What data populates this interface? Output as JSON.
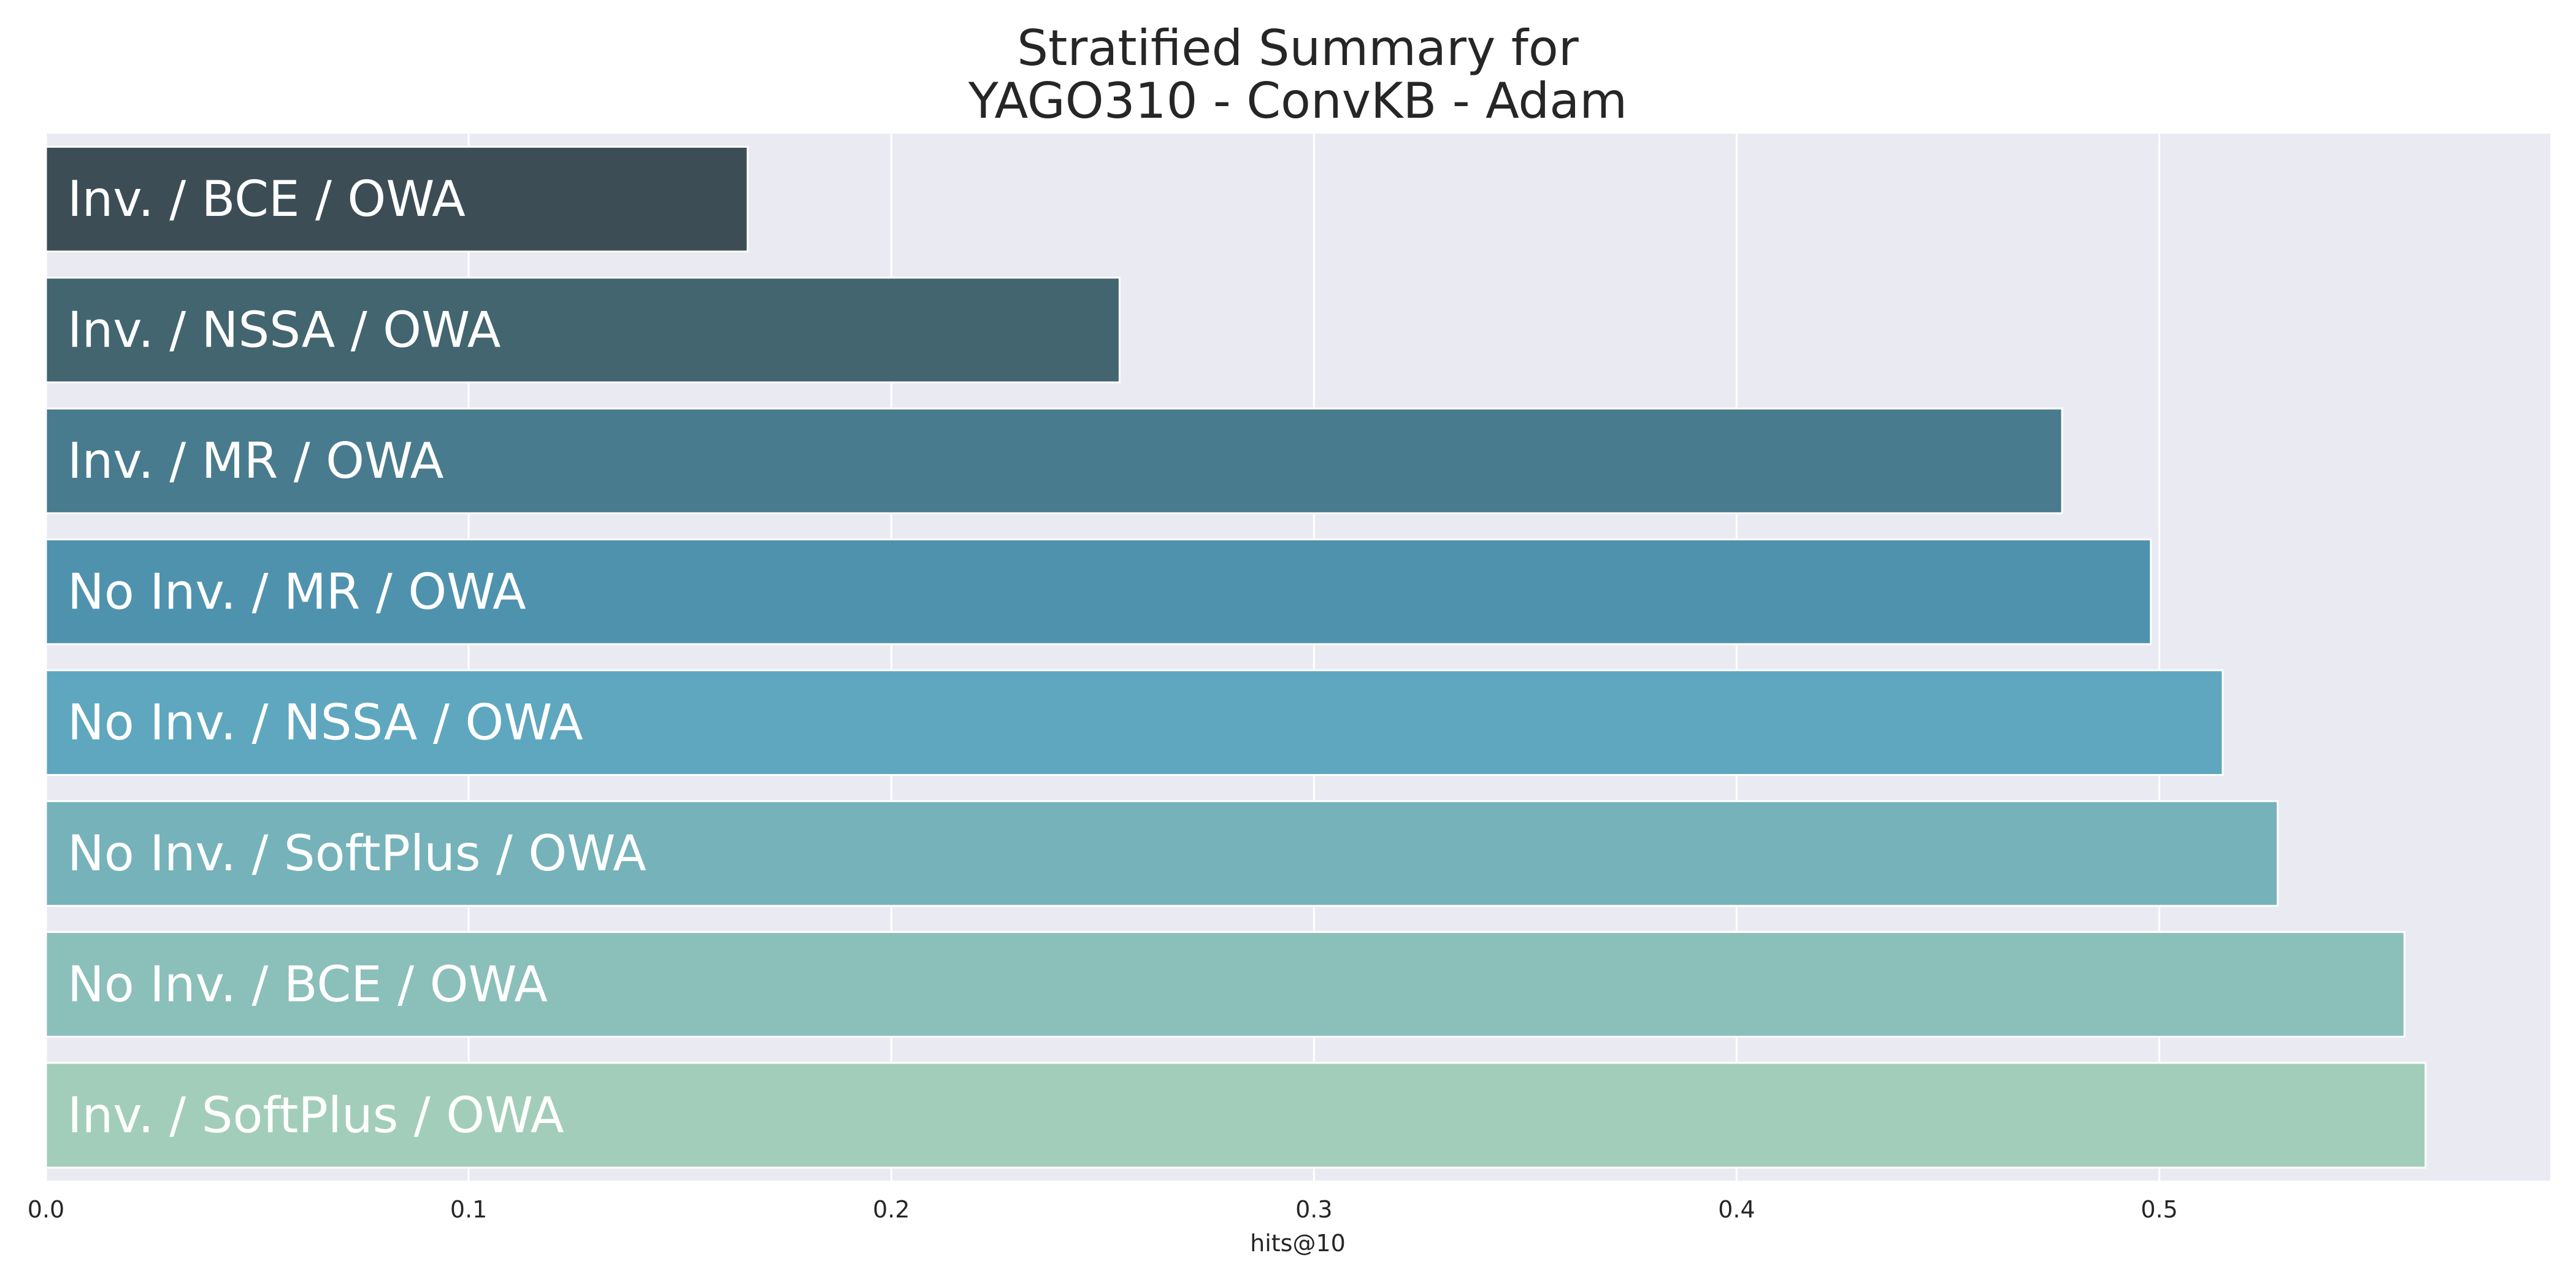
{
  "chart_data": {
    "type": "bar",
    "orientation": "horizontal",
    "title": [
      "Stratified Summary for",
      "YAGO310 - ConvKB - Adam"
    ],
    "xlabel": "hits@10",
    "ylabel": "",
    "xlim": [
      0,
      0.5925
    ],
    "xticks": [
      0.0,
      0.1,
      0.2,
      0.3,
      0.4,
      0.5
    ],
    "xtick_labels": [
      "0.0",
      "0.1",
      "0.2",
      "0.3",
      "0.4",
      "0.5"
    ],
    "grid": true,
    "background": "#eaeaf2",
    "grid_color": "#ffffff",
    "categories": [
      "Inv. / BCE / OWA",
      "Inv. / NSSA / OWA",
      "Inv. / MR / OWA",
      "No Inv. / MR / OWA",
      "No Inv. / NSSA / OWA",
      "No Inv. / SoftPlus / OWA",
      "No Inv. / BCE / OWA",
      "Inv. / SoftPlus / OWA"
    ],
    "values": [
      0.166,
      0.254,
      0.477,
      0.498,
      0.515,
      0.528,
      0.558,
      0.563
    ],
    "colors": [
      "#3c4d55",
      "#42656f",
      "#487b8d",
      "#4f92ae",
      "#5ea7bf",
      "#76b2ba",
      "#8bbfba",
      "#a3cdbb"
    ]
  }
}
